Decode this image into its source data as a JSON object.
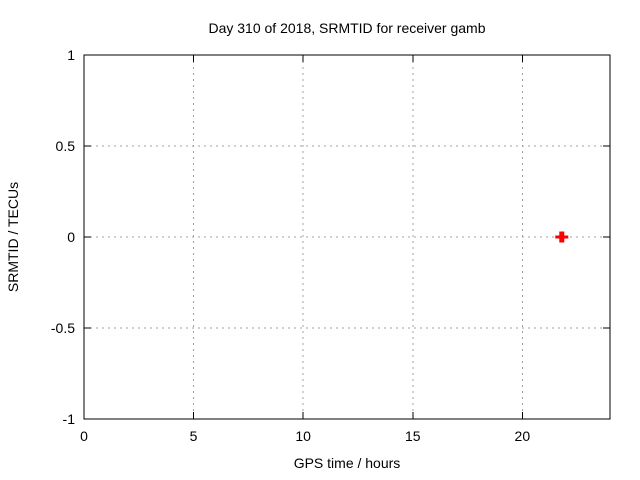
{
  "chart_data": {
    "type": "scatter",
    "title": "Day 310 of 2018, SRMTID for receiver gamb",
    "xlabel": "GPS time / hours",
    "ylabel": "SRMTID / TECUs",
    "xlim": [
      0,
      24
    ],
    "ylim": [
      -1,
      1
    ],
    "x_ticks": [
      {
        "value": 0,
        "label": "0"
      },
      {
        "value": 5,
        "label": "5"
      },
      {
        "value": 10,
        "label": "10"
      },
      {
        "value": 15,
        "label": "15"
      },
      {
        "value": 20,
        "label": "20"
      }
    ],
    "y_ticks": [
      {
        "value": 1,
        "label": "1"
      },
      {
        "value": 0.5,
        "label": "0.5"
      },
      {
        "value": 0,
        "label": "0"
      },
      {
        "value": -0.5,
        "label": "-0.5"
      },
      {
        "value": -1,
        "label": "-1"
      }
    ],
    "grid": true,
    "legend": "none",
    "series": [
      {
        "name": "SRMTID",
        "marker": "plus",
        "color": "#ff0000",
        "points": [
          {
            "x": 21.8,
            "y": 0.0
          }
        ]
      }
    ]
  },
  "colors": {
    "background": "#ffffff",
    "axis": "#000000",
    "grid": "#a0a0a0",
    "text": "#000000",
    "marker": "#ff0000"
  }
}
